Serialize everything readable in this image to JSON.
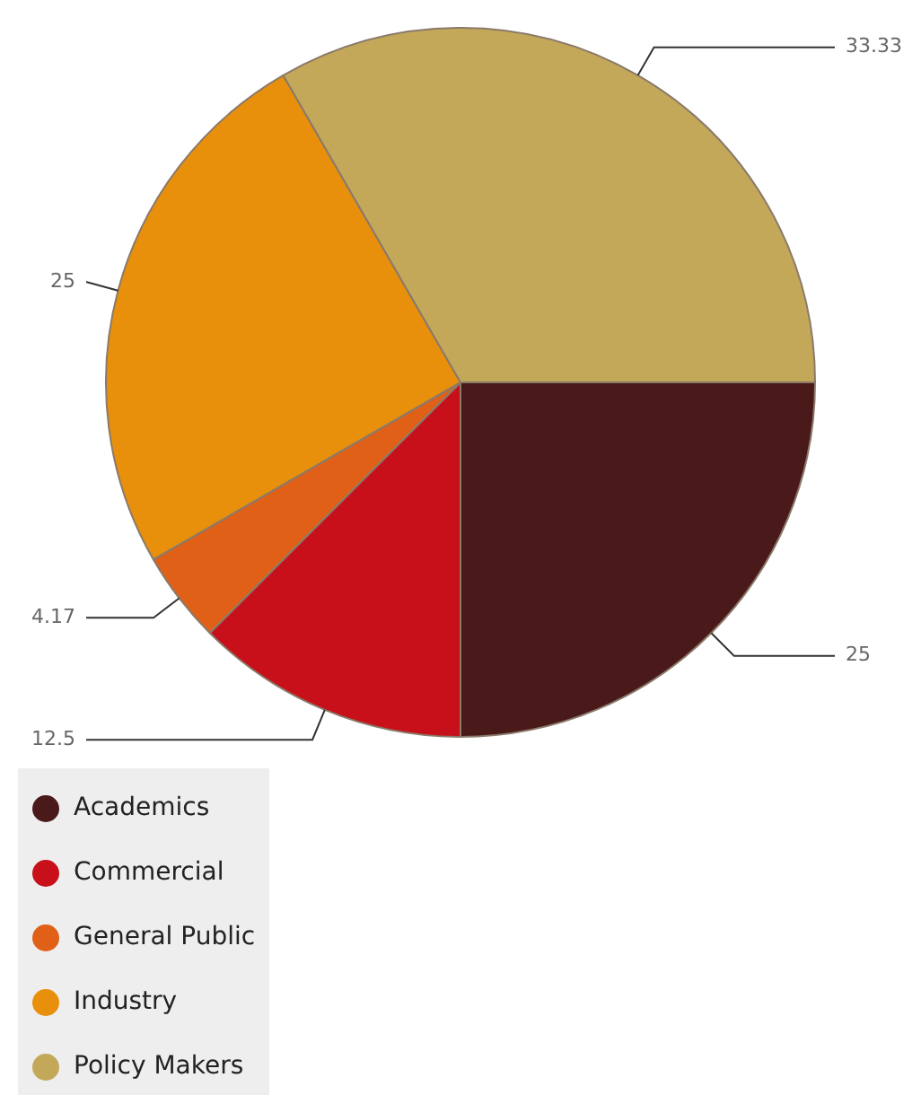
{
  "chart_data": {
    "type": "pie",
    "categories": [
      "Academics",
      "Commercial",
      "General Public",
      "Industry",
      "Policy Makers"
    ],
    "values": [
      25,
      12.5,
      4.17,
      25,
      33.33
    ],
    "colors": [
      "#4a1a1a",
      "#c8101a",
      "#e06018",
      "#e8900c",
      "#c4a85a"
    ],
    "data_labels": true,
    "legend": "bottom left"
  }
}
